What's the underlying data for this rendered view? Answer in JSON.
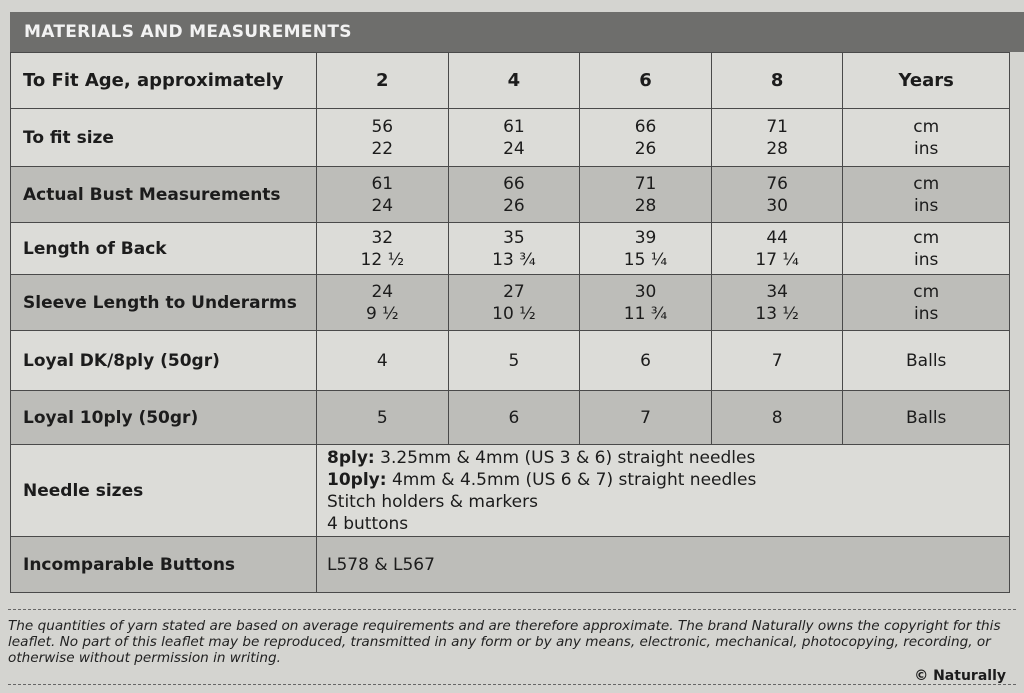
{
  "title": "MATERIALS AND MEASUREMENTS",
  "header": {
    "label": "To Fit Age, approximately",
    "values": [
      "2",
      "4",
      "6",
      "8"
    ],
    "unit": "Years"
  },
  "rows": [
    {
      "label": "To fit size",
      "cm": [
        "56",
        "61",
        "66",
        "71"
      ],
      "ins": [
        "22",
        "24",
        "26",
        "28"
      ],
      "unit_cm": "cm",
      "unit_ins": "ins",
      "shade": "light"
    },
    {
      "label": "Actual Bust Measurements",
      "cm": [
        "61",
        "66",
        "71",
        "76"
      ],
      "ins": [
        "24",
        "26",
        "28",
        "30"
      ],
      "unit_cm": "cm",
      "unit_ins": "ins",
      "shade": "dark"
    },
    {
      "label": "Length of Back",
      "cm": [
        "32",
        "35",
        "39",
        "44"
      ],
      "ins": [
        "12 ½",
        "13 ¾",
        "15 ¼",
        "17 ¼"
      ],
      "unit_cm": "cm",
      "unit_ins": "ins",
      "shade": "light"
    },
    {
      "label": "Sleeve Length to Underarms",
      "cm": [
        "24",
        "27",
        "30",
        "34"
      ],
      "ins": [
        "9 ½",
        "10 ½",
        "11 ¾",
        "13 ½"
      ],
      "unit_cm": "cm",
      "unit_ins": "ins",
      "shade": "dark"
    }
  ],
  "yarn": [
    {
      "label": "Loyal DK/8ply (50gr)",
      "values": [
        "4",
        "5",
        "6",
        "7"
      ],
      "unit": "Balls"
    },
    {
      "label": "Loyal 10ply (50gr)",
      "values": [
        "5",
        "6",
        "7",
        "8"
      ],
      "unit": "Balls"
    }
  ],
  "needles": {
    "label": "Needle sizes",
    "line1_bold": "8ply:",
    "line1": " 3.25mm & 4mm (US 3 & 6) straight needles",
    "line2_bold": "10ply:",
    "line2": " 4mm & 4.5mm (US 6 & 7) straight needles",
    "line3": "Stitch holders & markers",
    "line4": "4 buttons"
  },
  "buttons": {
    "label": "Incomparable Buttons",
    "value": "L578 & L567"
  },
  "disclaimer": "The quantities of yarn stated are based on average requirements and are therefore approximate. The brand Naturally owns the copyright for this leaflet. No part of this leaflet may be reproduced, transmitted in any form or by any means, electronic, mechanical, photocopying, recording, or otherwise without permission in writing.",
  "copyright": "© Naturally"
}
